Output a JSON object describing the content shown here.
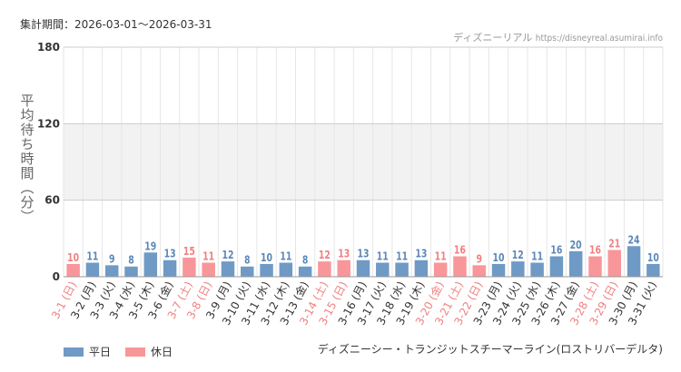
{
  "header": {
    "period": "集計期間：2026-03-01～2026-03-31",
    "site": "ディズニーリアル",
    "url": "https://disneyreal.asumirai.info"
  },
  "footer": {
    "attraction": "ディズニーシー・トランジットスチーマーライン(ロストリバーデルタ)"
  },
  "colors": {
    "weekday": "#6f9ac6",
    "holiday": "#f9969a",
    "holiday_label": "#f08080",
    "weekday_label": "#5b88b8"
  },
  "chart_data": {
    "type": "bar",
    "ylabel": "平均待ち時間（分）",
    "ylim": [
      0,
      180
    ],
    "yticks": [
      0,
      60,
      120,
      180
    ],
    "legend": {
      "position": "bottom-left",
      "entries": [
        "平日",
        "休日"
      ]
    },
    "categories": [
      "3-1 (日)",
      "3-2 (月)",
      "3-3 (火)",
      "3-4 (水)",
      "3-5 (木)",
      "3-6 (金)",
      "3-7 (土)",
      "3-8 (日)",
      "3-9 (月)",
      "3-10 (火)",
      "3-11 (水)",
      "3-12 (木)",
      "3-13 (金)",
      "3-14 (土)",
      "3-15 (日)",
      "3-16 (月)",
      "3-17 (火)",
      "3-18 (水)",
      "3-19 (木)",
      "3-20 (金)",
      "3-21 (土)",
      "3-22 (日)",
      "3-23 (月)",
      "3-24 (火)",
      "3-25 (水)",
      "3-26 (木)",
      "3-27 (金)",
      "3-28 (土)",
      "3-29 (日)",
      "3-30 (月)",
      "3-31 (火)"
    ],
    "values": [
      10,
      11,
      9,
      8,
      19,
      13,
      15,
      11,
      12,
      8,
      10,
      11,
      8,
      12,
      13,
      13,
      11,
      11,
      13,
      11,
      16,
      9,
      10,
      12,
      11,
      16,
      20,
      16,
      21,
      24,
      10
    ],
    "holiday": [
      true,
      false,
      false,
      false,
      false,
      false,
      true,
      true,
      false,
      false,
      false,
      false,
      false,
      true,
      true,
      false,
      false,
      false,
      false,
      true,
      true,
      true,
      false,
      false,
      false,
      false,
      false,
      true,
      true,
      false,
      false
    ]
  }
}
